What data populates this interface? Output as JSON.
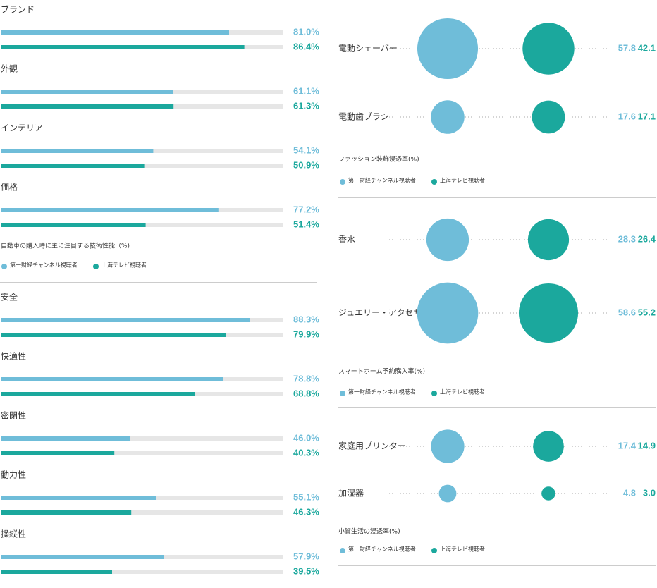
{
  "chart_data": [
    {
      "type": "bar",
      "orientation": "horizontal",
      "title": "自動車の購入時に主に注目する技術性能（%)",
      "categories": [
        "ブランド",
        "外観",
        "インテリア",
        "価格"
      ],
      "xlim": [
        0,
        100
      ],
      "series": [
        {
          "name": "第一財経チャンネル視聴者",
          "color": "#6fbdd9",
          "values": [
            81.0,
            61.1,
            54.1,
            77.2
          ],
          "value_labels": [
            "81.0%",
            "61.1%",
            "54.1%",
            "77.2%"
          ]
        },
        {
          "name": "上海テレビ視聴者",
          "color": "#1ba89d",
          "values": [
            86.4,
            61.3,
            50.9,
            51.4
          ],
          "value_labels": [
            "86.4%",
            "61.3%",
            "50.9%",
            "51.4%"
          ]
        }
      ]
    },
    {
      "type": "bar",
      "orientation": "horizontal",
      "categories": [
        "安全",
        "快適性",
        "密閉性",
        "動力性",
        "操縦性"
      ],
      "xlim": [
        0,
        100
      ],
      "series": [
        {
          "color": "#6fbdd9",
          "values": [
            88.3,
            78.8,
            46.0,
            55.1,
            57.9
          ],
          "value_labels": [
            "88.3%",
            "78.8%",
            "46.0%",
            "55.1%",
            "57.9%"
          ]
        },
        {
          "color": "#1ba89d",
          "values": [
            79.9,
            68.8,
            40.3,
            46.3,
            39.5
          ],
          "value_labels": [
            "79.9%",
            "68.8%",
            "40.3%",
            "46.3%",
            "39.5%"
          ]
        }
      ]
    },
    {
      "type": "bubble",
      "title": "ファッション装飾浸透率(%)",
      "categories": [
        "電動シェーバー",
        "電動歯ブラシ"
      ],
      "series": [
        {
          "name": "第一財経チャンネル視聴者",
          "color": "#6fbdd9",
          "values": [
            57.8,
            17.6
          ]
        },
        {
          "name": "上海テレビ視聴者",
          "color": "#1ba89d",
          "values": [
            42.1,
            17.1
          ]
        }
      ]
    },
    {
      "type": "bubble",
      "title": "スマートホーム予約購入率(%)",
      "categories": [
        "香水",
        "ジュエリー・アクセサリー"
      ],
      "series": [
        {
          "name": "第一財経チャンネル視聴者",
          "color": "#6fbdd9",
          "values": [
            28.3,
            58.6
          ]
        },
        {
          "name": "上海テレビ視聴者",
          "color": "#1ba89d",
          "values": [
            26.4,
            55.2
          ]
        }
      ]
    },
    {
      "type": "bubble",
      "title": "小資生活の浸透率(%)",
      "categories": [
        "家庭用プリンター",
        "加湿器"
      ],
      "series": [
        {
          "name": "第一財経チャンネル視聴者",
          "color": "#6fbdd9",
          "values": [
            17.4,
            4.8
          ]
        },
        {
          "name": "上海テレビ視聴者",
          "color": "#1ba89d",
          "values": [
            14.9,
            3.0
          ],
          "value_labels": [
            "14.9",
            "3.0"
          ]
        }
      ]
    }
  ]
}
